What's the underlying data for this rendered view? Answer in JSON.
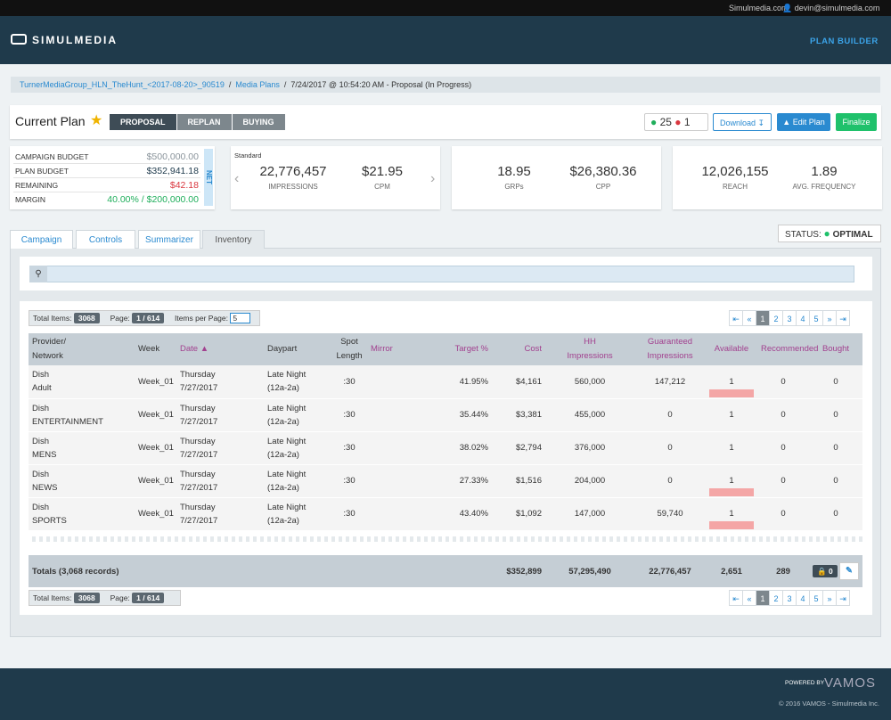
{
  "top_bar": {
    "site": "Simulmedia.com",
    "user": "devin@simulmedia.com"
  },
  "header": {
    "brand": "SIMULMEDIA",
    "nav": "PLAN BUILDER"
  },
  "breadcrumb": [
    "TurnerMediaGroup_HLN_TheHunt_<2017-08-20>_90519",
    "Media Plans",
    "7/24/2017 @ 10:54:20 AM - Proposal (In Progress)"
  ],
  "plan": {
    "title": "Current Plan",
    "steps": [
      "PROPOSAL",
      "REPLAN",
      "BUYING"
    ],
    "ok_count": "25",
    "error_count": "1",
    "buttons": {
      "download": "Download",
      "edit": "Edit Plan",
      "finalize": "Finalize"
    }
  },
  "budget": {
    "rows": [
      {
        "label": "CAMPAIGN BUDGET",
        "value": "$500,000.00",
        "color": "#8a949b"
      },
      {
        "label": "PLAN BUDGET",
        "value": "$352,941.18",
        "color": "#1e3a4c"
      },
      {
        "label": "REMAINING",
        "value": "$42.18",
        "color": "#d9363e"
      },
      {
        "label": "MARGIN",
        "value": "40.00% / $200,000.00",
        "color": "#1fae5b"
      }
    ],
    "net_label": "NET"
  },
  "metrics": {
    "label": "Standard",
    "cards": [
      [
        {
          "value": "22,776,457",
          "label": "IMPRESSIONS"
        },
        {
          "value": "$21.95",
          "label": "CPM"
        }
      ],
      [
        {
          "value": "18.95",
          "label": "GRPs"
        },
        {
          "value": "$26,380.36",
          "label": "CPP"
        }
      ],
      [
        {
          "value": "12,026,155",
          "label": "REACH"
        },
        {
          "value": "1.89",
          "label": "AVG. FREQUENCY"
        }
      ]
    ]
  },
  "tabs": [
    "Campaign",
    "Controls",
    "Summarizer",
    "Inventory"
  ],
  "status": {
    "label": "STATUS:",
    "value": "OPTIMAL"
  },
  "pager": {
    "total_label": "Total Items:",
    "total": "3068",
    "page_label": "Page:",
    "page": "1 / 614",
    "per_page_label": "Items per Page:",
    "per_page": "5",
    "pages": [
      "1",
      "2",
      "3",
      "4",
      "5"
    ]
  },
  "table": {
    "headers": [
      {
        "lines": [
          "Provider/",
          "Network"
        ],
        "sortable": false
      },
      {
        "lines": [
          "Week"
        ],
        "sortable": false
      },
      {
        "lines": [
          "Date"
        ],
        "sortable": true
      },
      {
        "lines": [
          "Daypart"
        ],
        "sortable": false
      },
      {
        "lines": [
          "Spot",
          "Length"
        ],
        "sortable": false
      },
      {
        "lines": [
          "Mirror"
        ],
        "sortable": true
      },
      {
        "lines": [
          "Target %"
        ],
        "sortable": true
      },
      {
        "lines": [
          "Cost"
        ],
        "sortable": true
      },
      {
        "lines": [
          "HH",
          "Impressions"
        ],
        "sortable": true
      },
      {
        "lines": [
          "Guaranteed",
          "Impressions"
        ],
        "sortable": true
      },
      {
        "lines": [
          "Available"
        ],
        "sortable": true
      },
      {
        "lines": [
          "Recommended"
        ],
        "sortable": true
      },
      {
        "lines": [
          "Bought"
        ],
        "sortable": true
      }
    ],
    "rows": [
      {
        "provider": [
          "Dish",
          "Adult"
        ],
        "week": "Week_01",
        "date": [
          "Thursday",
          "7/27/2017"
        ],
        "daypart": [
          "Late Night",
          "(12a-2a)"
        ],
        "length": ":30",
        "target": "41.95%",
        "cost": "$4,161",
        "hh": "560,000",
        "guaranteed": "147,212",
        "available": "1",
        "recommended": "0",
        "bought": "0",
        "highlight": true
      },
      {
        "provider": [
          "Dish",
          "ENTERTAINMENT"
        ],
        "week": "Week_01",
        "date": [
          "Thursday",
          "7/27/2017"
        ],
        "daypart": [
          "Late Night",
          "(12a-2a)"
        ],
        "length": ":30",
        "target": "35.44%",
        "cost": "$3,381",
        "hh": "455,000",
        "guaranteed": "0",
        "available": "1",
        "recommended": "0",
        "bought": "0",
        "highlight": false
      },
      {
        "provider": [
          "Dish",
          "MENS"
        ],
        "week": "Week_01",
        "date": [
          "Thursday",
          "7/27/2017"
        ],
        "daypart": [
          "Late Night",
          "(12a-2a)"
        ],
        "length": ":30",
        "target": "38.02%",
        "cost": "$2,794",
        "hh": "376,000",
        "guaranteed": "0",
        "available": "1",
        "recommended": "0",
        "bought": "0",
        "highlight": false
      },
      {
        "provider": [
          "Dish",
          "NEWS"
        ],
        "week": "Week_01",
        "date": [
          "Thursday",
          "7/27/2017"
        ],
        "daypart": [
          "Late Night",
          "(12a-2a)"
        ],
        "length": ":30",
        "target": "27.33%",
        "cost": "$1,516",
        "hh": "204,000",
        "guaranteed": "0",
        "available": "1",
        "recommended": "0",
        "bought": "0",
        "highlight": true
      },
      {
        "provider": [
          "Dish",
          "SPORTS"
        ],
        "week": "Week_01",
        "date": [
          "Thursday",
          "7/27/2017"
        ],
        "daypart": [
          "Late Night",
          "(12a-2a)"
        ],
        "length": ":30",
        "target": "43.40%",
        "cost": "$1,092",
        "hh": "147,000",
        "guaranteed": "59,740",
        "available": "1",
        "recommended": "0",
        "bought": "0",
        "highlight": true
      }
    ],
    "totals": {
      "label": "Totals (3,068 records)",
      "cost": "$352,899",
      "hh": "57,295,490",
      "guaranteed": "22,776,457",
      "available": "2,651",
      "recommended": "289",
      "bought": "0"
    }
  },
  "footer": {
    "powered": "POWERED BY",
    "brand": "VAMOS",
    "copyright": "© 2016 VAMOS - Simulmedia Inc."
  }
}
